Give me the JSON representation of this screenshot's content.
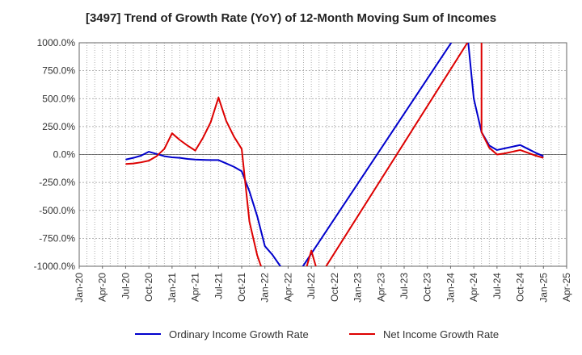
{
  "chart_data": {
    "type": "line",
    "title": "[3497]  Trend of Growth Rate (YoY) of 12-Month Moving Sum of Incomes",
    "xlabel": "",
    "ylabel": "",
    "ylim": [
      -1000,
      1000
    ],
    "yticks": [
      "1000.0%",
      "750.0%",
      "500.0%",
      "250.0%",
      "0.0%",
      "-250.0%",
      "-500.0%",
      "-750.0%",
      "-1000.0%"
    ],
    "ytick_values": [
      1000,
      750,
      500,
      250,
      0,
      -250,
      -500,
      -750,
      -1000
    ],
    "xticks": [
      "Jan-20",
      "Apr-20",
      "Jul-20",
      "Oct-20",
      "Jan-21",
      "Apr-21",
      "Jul-21",
      "Oct-21",
      "Jan-22",
      "Apr-22",
      "Jul-22",
      "Oct-22",
      "Jan-23",
      "Apr-23",
      "Jul-23",
      "Oct-23",
      "Jan-24",
      "Apr-24",
      "Jul-24",
      "Oct-24",
      "Jan-25",
      "Apr-25"
    ],
    "grid": true,
    "legend_position": "bottom",
    "series": [
      {
        "name": "Ordinary Income Growth Rate",
        "color": "#0000cc",
        "points": [
          [
            "Jul-20",
            -45
          ],
          [
            "Aug-20",
            -30
          ],
          [
            "Sep-20",
            -10
          ],
          [
            "Oct-20",
            25
          ],
          [
            "Nov-20",
            5
          ],
          [
            "Dec-20",
            -15
          ],
          [
            "Jan-21",
            -25
          ],
          [
            "Feb-21",
            -30
          ],
          [
            "Mar-21",
            -40
          ],
          [
            "Apr-21",
            -45
          ],
          [
            "May-21",
            -48
          ],
          [
            "Jun-21",
            -50
          ],
          [
            "Jul-21",
            -50
          ],
          [
            "Aug-21",
            -80
          ],
          [
            "Sep-21",
            -110
          ],
          [
            "Oct-21",
            -150
          ],
          [
            "Nov-21",
            -330
          ],
          [
            "Dec-21",
            -550
          ],
          [
            "Jan-22",
            -820
          ],
          [
            "Feb-22",
            -900
          ],
          [
            "Mar-22",
            -1000
          ],
          [
            "Apr-22",
            -1200
          ],
          [
            "Mar-24",
            1200
          ],
          [
            "Apr-24",
            500
          ],
          [
            "May-24",
            200
          ],
          [
            "Jun-24",
            80
          ],
          [
            "Jul-24",
            40
          ],
          [
            "Aug-24",
            55
          ],
          [
            "Sep-24",
            70
          ],
          [
            "Oct-24",
            85
          ],
          [
            "Nov-24",
            50
          ],
          [
            "Dec-24",
            15
          ],
          [
            "Jan-25",
            -15
          ]
        ]
      },
      {
        "name": "Net Income Growth Rate",
        "color": "#dd0000",
        "points": [
          [
            "Jul-20",
            -85
          ],
          [
            "Aug-20",
            -80
          ],
          [
            "Sep-20",
            -70
          ],
          [
            "Oct-20",
            -55
          ],
          [
            "Nov-20",
            -15
          ],
          [
            "Dec-20",
            50
          ],
          [
            "Jan-21",
            190
          ],
          [
            "Feb-21",
            130
          ],
          [
            "Mar-21",
            80
          ],
          [
            "Apr-21",
            35
          ],
          [
            "May-21",
            150
          ],
          [
            "Jun-21",
            290
          ],
          [
            "Jul-21",
            510
          ],
          [
            "Aug-21",
            300
          ],
          [
            "Sep-21",
            160
          ],
          [
            "Oct-21",
            50
          ],
          [
            "Nov-21",
            -600
          ],
          [
            "Dec-21",
            -900
          ],
          [
            "Jan-22",
            -1100
          ],
          [
            "Jun-22",
            -1100
          ],
          [
            "Jul-22",
            -860
          ],
          [
            "Aug-22",
            -1100
          ],
          [
            "May-24",
            1200
          ],
          [
            "May-24",
            200
          ],
          [
            "Jun-24",
            60
          ],
          [
            "Jul-24",
            0
          ],
          [
            "Aug-24",
            10
          ],
          [
            "Sep-24",
            25
          ],
          [
            "Oct-24",
            40
          ],
          [
            "Nov-24",
            15
          ],
          [
            "Dec-24",
            -10
          ],
          [
            "Jan-25",
            -30
          ]
        ]
      }
    ]
  }
}
